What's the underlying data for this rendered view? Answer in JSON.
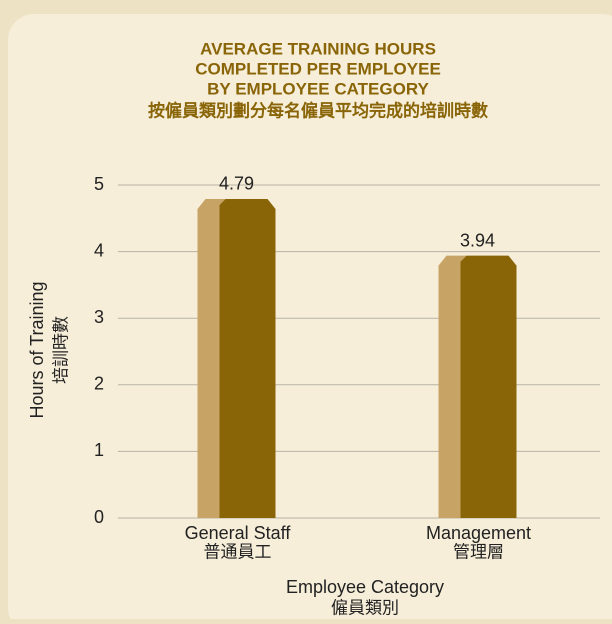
{
  "chart_data": {
    "type": "bar",
    "title": [
      "AVERAGE TRAINING HOURS",
      "COMPLETED PER EMPLOYEE",
      "BY EMPLOYEE CATEGORY"
    ],
    "subtitle": "按僱員類別劃分每名僱員平均完成的培訓時數",
    "categories": [
      [
        "General Staff",
        "普通員工"
      ],
      [
        "Management",
        "管理層"
      ]
    ],
    "values": [
      4.79,
      3.94
    ],
    "color": "#8a6508",
    "side_color": "#c7a466",
    "x_label": [
      "Employee Category",
      "僱員類別"
    ],
    "y_label": [
      "Hours of Training",
      "培訓時數"
    ],
    "ylim": [
      0,
      5
    ],
    "yticks": [
      0,
      1,
      2,
      3,
      4,
      5
    ],
    "grid": true
  }
}
